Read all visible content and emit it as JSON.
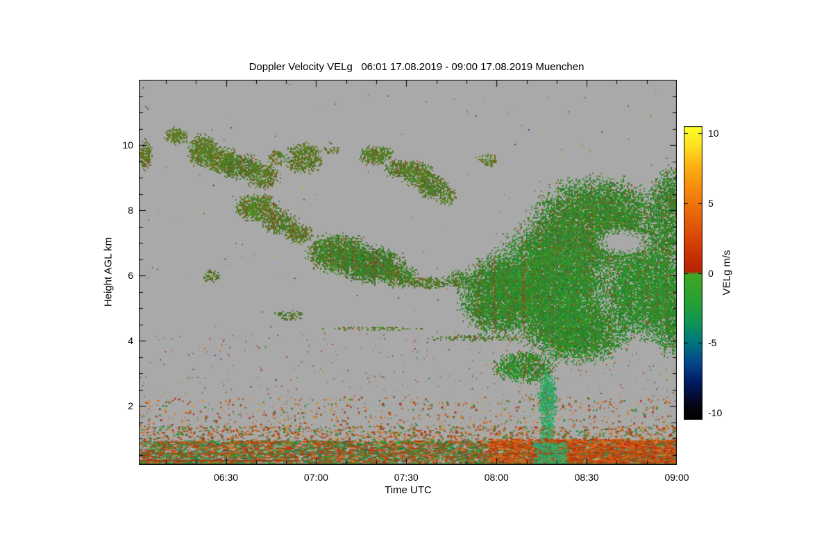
{
  "chart_data": {
    "type": "heatmap",
    "title": "Doppler Velocity VELg   06:01 17.08.2019 - 09:00 17.08.2019 Muenchen",
    "location": "Muenchen",
    "date": "17.08.2019",
    "time_start": "06:01",
    "time_end": "09:00",
    "xlabel": "Time UTC",
    "ylabel": "Height AGL km",
    "x_range_hours": [
      6.0167,
      9.0
    ],
    "x_ticks": [
      {
        "value": 6.5,
        "label": "06:30"
      },
      {
        "value": 7.0,
        "label": "07:00"
      },
      {
        "value": 7.5,
        "label": "07:30"
      },
      {
        "value": 8.0,
        "label": "08:00"
      },
      {
        "value": 8.5,
        "label": "08:30"
      },
      {
        "value": 9.0,
        "label": "09:00"
      }
    ],
    "x_minor_tick_hours": 0.166667,
    "y_range_km": [
      0.2,
      12.0
    ],
    "y_ticks": [
      {
        "value": 2,
        "label": "2"
      },
      {
        "value": 4,
        "label": "4"
      },
      {
        "value": 6,
        "label": "6"
      },
      {
        "value": 8,
        "label": "8"
      },
      {
        "value": 10,
        "label": "10"
      }
    ],
    "y_minor_tick_km": 0.5,
    "no_data_color": "#a9a9a9",
    "frame_color": "#000000",
    "colorbar": {
      "label": "VELg m/s",
      "range": [
        -10.5,
        10.5
      ],
      "ticks": [
        {
          "value": 10,
          "label": "10"
        },
        {
          "value": 5,
          "label": "5"
        },
        {
          "value": 0,
          "label": "0"
        },
        {
          "value": -5,
          "label": "-5"
        },
        {
          "value": -10,
          "label": "-10"
        }
      ],
      "stops": [
        [
          0.0,
          "#000000"
        ],
        [
          0.05,
          "#050514"
        ],
        [
          0.13,
          "#001c66"
        ],
        [
          0.2,
          "#064a8c"
        ],
        [
          0.27,
          "#007a7a"
        ],
        [
          0.33,
          "#0f9455"
        ],
        [
          0.4,
          "#27a033"
        ],
        [
          0.47,
          "#3aa528"
        ],
        [
          0.495,
          "#3fa828"
        ],
        [
          0.505,
          "#b42404"
        ],
        [
          0.55,
          "#c62e04"
        ],
        [
          0.62,
          "#d84708"
        ],
        [
          0.7,
          "#e8660a"
        ],
        [
          0.78,
          "#f5870d"
        ],
        [
          0.86,
          "#fcae12"
        ],
        [
          0.93,
          "#fede20"
        ],
        [
          1.0,
          "#ffff2a"
        ]
      ]
    },
    "description": "Time-height Doppler velocity plot. Gray = no signal. Olive/green cloud layers (velocities near 0 to -3 m/s): broken cirrus bands 9-10.5 km descending 06:00-08:00, mid-level cloud 5.5-8.5 km 06:40-07:40, deep precipitating system 3-9.5 km after 07:45 with teal fall streak to the ground near 08:17, dense red/green boundary-layer speckle below 2 km.",
    "clouds": [
      {
        "t": 6.05,
        "h": 9.7,
        "rt": 0.04,
        "rh": 0.5,
        "color": "#557c28",
        "fill": 0.8
      },
      {
        "t": 6.22,
        "h": 10.3,
        "rt": 0.07,
        "rh": 0.3,
        "color": "#5d7c26",
        "fill": 0.8
      },
      {
        "t": 6.37,
        "h": 9.85,
        "rt": 0.09,
        "rh": 0.55,
        "color": "#55802a",
        "fill": 0.9
      },
      {
        "t": 6.47,
        "h": 9.55,
        "rt": 0.1,
        "rh": 0.45,
        "color": "#5d7c26",
        "fill": 0.85
      },
      {
        "t": 6.58,
        "h": 9.35,
        "rt": 0.12,
        "rh": 0.42,
        "color": "#4e7a2c",
        "fill": 0.85
      },
      {
        "t": 6.7,
        "h": 9.05,
        "rt": 0.1,
        "rh": 0.4,
        "color": "#55802a",
        "fill": 0.8
      },
      {
        "t": 6.78,
        "h": 9.6,
        "rt": 0.06,
        "rh": 0.28,
        "color": "#5d7c26",
        "fill": 0.55
      },
      {
        "t": 6.93,
        "h": 9.6,
        "rt": 0.11,
        "rh": 0.5,
        "color": "#55802a",
        "fill": 0.85
      },
      {
        "t": 7.08,
        "h": 9.9,
        "rt": 0.05,
        "rh": 0.2,
        "color": "#5d7c26",
        "fill": 0.5
      },
      {
        "t": 7.33,
        "h": 9.7,
        "rt": 0.1,
        "rh": 0.33,
        "color": "#55802a",
        "fill": 0.85
      },
      {
        "t": 7.45,
        "h": 9.3,
        "rt": 0.08,
        "rh": 0.3,
        "color": "#4e7a2c",
        "fill": 0.8
      },
      {
        "t": 7.55,
        "h": 9.15,
        "rt": 0.1,
        "rh": 0.42,
        "color": "#55802a",
        "fill": 0.85
      },
      {
        "t": 7.64,
        "h": 8.75,
        "rt": 0.09,
        "rh": 0.4,
        "color": "#4e7a2c",
        "fill": 0.85
      },
      {
        "t": 7.72,
        "h": 8.45,
        "rt": 0.06,
        "rh": 0.3,
        "color": "#55802a",
        "fill": 0.7
      },
      {
        "t": 7.95,
        "h": 9.55,
        "rt": 0.06,
        "rh": 0.22,
        "color": "#5d7c26",
        "fill": 0.6
      },
      {
        "t": 6.67,
        "h": 8.1,
        "rt": 0.13,
        "rh": 0.45,
        "color": "#55802a",
        "fill": 0.9
      },
      {
        "t": 6.8,
        "h": 7.65,
        "rt": 0.11,
        "rh": 0.4,
        "color": "#4e7a2c",
        "fill": 0.85
      },
      {
        "t": 6.9,
        "h": 7.3,
        "rt": 0.08,
        "rh": 0.32,
        "color": "#55802a",
        "fill": 0.8
      },
      {
        "t": 7.12,
        "h": 6.7,
        "rt": 0.18,
        "rh": 0.65,
        "color": "#44802c",
        "fill": 0.95
      },
      {
        "t": 7.3,
        "h": 6.35,
        "rt": 0.2,
        "rh": 0.6,
        "color": "#3c7c2e",
        "fill": 0.95
      },
      {
        "t": 7.45,
        "h": 6.0,
        "rt": 0.12,
        "rh": 0.35,
        "color": "#44802c",
        "fill": 0.85
      },
      {
        "t": 7.62,
        "h": 5.8,
        "rt": 0.13,
        "rh": 0.22,
        "color": "#4e7a2c",
        "fill": 0.7
      },
      {
        "t": 6.42,
        "h": 6.0,
        "rt": 0.05,
        "rh": 0.22,
        "color": "#4e7a2c",
        "fill": 0.65
      },
      {
        "t": 6.85,
        "h": 4.8,
        "rt": 0.09,
        "rh": 0.16,
        "color": "#4e7a2c",
        "fill": 0.65
      },
      {
        "t": 7.3,
        "h": 4.4,
        "rt": 0.3,
        "rh": 0.07,
        "color": "#55802a",
        "fill": 0.45
      },
      {
        "t": 7.9,
        "h": 4.1,
        "rt": 0.28,
        "rh": 0.1,
        "color": "#4e7a2c",
        "fill": 0.55
      },
      {
        "t": 7.79,
        "h": 5.9,
        "rt": 0.07,
        "rh": 0.3,
        "color": "#44802c",
        "fill": 0.7
      },
      {
        "t": 8.0,
        "h": 5.4,
        "rt": 0.22,
        "rh": 1.3,
        "color": "#37852e",
        "fill": 0.95
      },
      {
        "t": 8.3,
        "h": 5.8,
        "rt": 0.35,
        "rh": 2.0,
        "color": "#2f8c2f",
        "fill": 0.97
      },
      {
        "t": 8.55,
        "h": 7.6,
        "rt": 0.38,
        "rh": 1.5,
        "color": "#37852e",
        "fill": 0.95
      },
      {
        "t": 8.45,
        "h": 4.3,
        "rt": 0.3,
        "rh": 1.0,
        "color": "#2f8c2f",
        "fill": 0.95
      },
      {
        "t": 8.8,
        "h": 5.6,
        "rt": 0.22,
        "rh": 1.6,
        "color": "#2f8c2f",
        "fill": 0.9
      },
      {
        "t": 8.95,
        "h": 7.8,
        "rt": 0.12,
        "rh": 1.6,
        "color": "#37852e",
        "fill": 0.85
      },
      {
        "t": 8.95,
        "h": 5.0,
        "rt": 0.12,
        "rh": 1.5,
        "color": "#2f8c2f",
        "fill": 0.85
      },
      {
        "t": 8.15,
        "h": 3.2,
        "rt": 0.18,
        "rh": 0.5,
        "color": "#2f8c2f",
        "fill": 0.85
      },
      {
        "t": 8.28,
        "h": 2.2,
        "rt": 0.06,
        "rh": 0.9,
        "color": "#35a567",
        "fill": 0.95,
        "smooth": true
      },
      {
        "t": 8.28,
        "h": 1.0,
        "rt": 0.05,
        "rh": 0.9,
        "color": "#3aae74",
        "fill": 0.95,
        "smooth": true
      },
      {
        "t": 8.28,
        "h": 0.55,
        "rt": 0.09,
        "rh": 0.45,
        "color": "#3aae74",
        "fill": 0.9,
        "smooth": true
      },
      {
        "t": 8.7,
        "h": 7.05,
        "rt": 0.15,
        "rh": 0.42,
        "color": "#a9a9a9",
        "fill": 1.0,
        "hole": true,
        "smooth": true
      }
    ],
    "cloud_speckle": {
      "red": "#96501e",
      "bright": "#4aa832",
      "red_prob": 0.05,
      "bright_prob": 0.04
    },
    "column_tint_color": "#96461a",
    "noise_layers": [
      {
        "name": "sparse-upper",
        "t": [
          6.0167,
          9.0
        ],
        "h": [
          2.3,
          11.9
        ],
        "density": 0.0006,
        "colors": [
          "#b03010",
          "#d07010",
          "#2f8c2f",
          "#208060",
          "#404040",
          "#c8c820",
          "#2828a0"
        ],
        "size": [
          1,
          2
        ],
        "horizontal": false
      },
      {
        "name": "speckle-2to4km",
        "t": [
          6.0167,
          9.0
        ],
        "h": [
          2.3,
          4.3
        ],
        "density": 0.004,
        "colors": [
          "#b03010",
          "#2f8c2f",
          "#d07010",
          "#96501e"
        ],
        "size": [
          1,
          2
        ],
        "horizontal": false
      },
      {
        "name": "speckle-1to2km",
        "t": [
          6.0167,
          9.0
        ],
        "h": [
          1.0,
          2.3
        ],
        "density": 0.02,
        "colors": [
          "#b03010",
          "#d06010",
          "#2f8c2f",
          "#e08820",
          "#96501e"
        ],
        "size": [
          1,
          3
        ],
        "horizontal": false
      },
      {
        "name": "subcloud-band",
        "t": [
          6.0167,
          9.0
        ],
        "h": [
          0.9,
          1.4
        ],
        "density": 0.05,
        "colors": [
          "#2f8c2f",
          "#b04010",
          "#d06818",
          "#96501e"
        ],
        "size": [
          2,
          4
        ],
        "horizontal": true
      },
      {
        "name": "ground-band",
        "t": [
          6.0167,
          9.0
        ],
        "h": [
          0.2,
          0.95
        ],
        "density": 0.2,
        "colors": [
          "#2f8c2f",
          "#c04010",
          "#d06818",
          "#3f9f3f",
          "#a04818",
          "#207f4f",
          "#96501e"
        ],
        "size": [
          2,
          7
        ],
        "horizontal": true
      },
      {
        "name": "ground-red-right",
        "t": [
          7.95,
          9.0
        ],
        "h": [
          0.2,
          1.0
        ],
        "density": 0.15,
        "colors": [
          "#c03008",
          "#d05010",
          "#b84812",
          "#e06a18"
        ],
        "size": [
          2,
          7
        ],
        "horizontal": true
      },
      {
        "name": "plume-ground-green",
        "t": [
          8.2,
          8.38
        ],
        "h": [
          0.2,
          0.9
        ],
        "density": 0.25,
        "colors": [
          "#35a567",
          "#3aae74",
          "#2f9c5a"
        ],
        "size": [
          2,
          5
        ],
        "horizontal": true
      }
    ],
    "ground_lines": [
      {
        "t0": 6.0167,
        "t1": 6.9,
        "h": 0.35,
        "color": "#9e3c14",
        "w": 2
      },
      {
        "t0": 6.0167,
        "t1": 9.0,
        "h": 0.55,
        "color": "#7c5a22",
        "w": 1
      },
      {
        "t0": 6.0167,
        "t1": 9.0,
        "h": 0.24,
        "color": "#356f2a",
        "w": 2
      }
    ]
  }
}
